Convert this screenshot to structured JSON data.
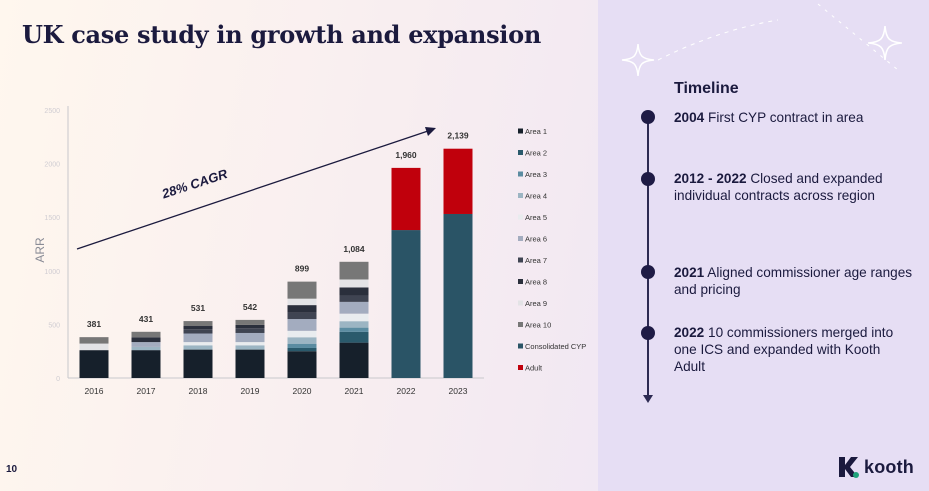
{
  "slide": {
    "title": "UK case study in growth and expansion",
    "page_number": "10"
  },
  "chart_data": {
    "type": "bar",
    "stacked": true,
    "ylabel": "ARR",
    "categories": [
      "2016",
      "2017",
      "2018",
      "2019",
      "2020",
      "2021",
      "2022",
      "2023"
    ],
    "totals": [
      "381",
      "431",
      "531",
      "542",
      "899",
      "1,084",
      "1,960",
      "2,139"
    ],
    "total_values": [
      381,
      431,
      531,
      542,
      899,
      1084,
      1960,
      2139
    ],
    "ylim": [
      0,
      2500
    ],
    "yticks": [
      0,
      500,
      1000,
      1500,
      2000,
      2500
    ],
    "legend_position": "right",
    "annotation": "28% CAGR",
    "series": [
      {
        "name": "Area 1",
        "color": "#16202b",
        "values": [
          260,
          260,
          265,
          265,
          250,
          330,
          0,
          0
        ]
      },
      {
        "name": "Area 2",
        "color": "#2a5a6c",
        "values": [
          0,
          0,
          0,
          0,
          30,
          100,
          0,
          0
        ]
      },
      {
        "name": "Area 3",
        "color": "#5b8ca1",
        "values": [
          0,
          0,
          0,
          0,
          40,
          40,
          0,
          0
        ]
      },
      {
        "name": "Area 4",
        "color": "#9cb5c3",
        "values": [
          0,
          30,
          40,
          40,
          60,
          60,
          0,
          0
        ]
      },
      {
        "name": "Area 5",
        "color": "#e9ecef",
        "values": [
          0,
          0,
          30,
          30,
          60,
          70,
          0,
          0
        ]
      },
      {
        "name": "Area 6",
        "color": "#a3acbf",
        "values": [
          0,
          45,
          80,
          85,
          110,
          110,
          0,
          0
        ]
      },
      {
        "name": "Area 7",
        "color": "#3f4452",
        "values": [
          0,
          0,
          40,
          45,
          60,
          60,
          0,
          0
        ]
      },
      {
        "name": "Area 8",
        "color": "#2a2f3c",
        "values": [
          0,
          45,
          30,
          30,
          70,
          75,
          0,
          0
        ]
      },
      {
        "name": "Area 9",
        "color": "#e3e3e6",
        "values": [
          61,
          0,
          0,
          0,
          60,
          74,
          0,
          0
        ]
      },
      {
        "name": "Area 10",
        "color": "#777777",
        "values": [
          60,
          51,
          46,
          47,
          159,
          165,
          0,
          0
        ]
      },
      {
        "name": "Consolidated CYP",
        "color": "#2a5466",
        "values": [
          0,
          0,
          0,
          0,
          0,
          0,
          1380,
          1530
        ]
      },
      {
        "name": "Adult",
        "color": "#c0000c",
        "values": [
          0,
          0,
          0,
          0,
          0,
          0,
          580,
          609
        ]
      }
    ]
  },
  "timeline": {
    "title": "Timeline",
    "items": [
      {
        "year": "2004",
        "text": "First CYP contract in area"
      },
      {
        "year": "2012 - 2022",
        "text": "Closed and expanded individual contracts across region"
      },
      {
        "year": "2021",
        "text": "Aligned commissioner age ranges and pricing"
      },
      {
        "year": "2022",
        "text": "10 commissioners merged into one ICS and expanded with Kooth Adult"
      }
    ]
  },
  "brand": {
    "name": "kooth",
    "color": "#1b1a3e",
    "icon": "kooth-logo-icon"
  }
}
